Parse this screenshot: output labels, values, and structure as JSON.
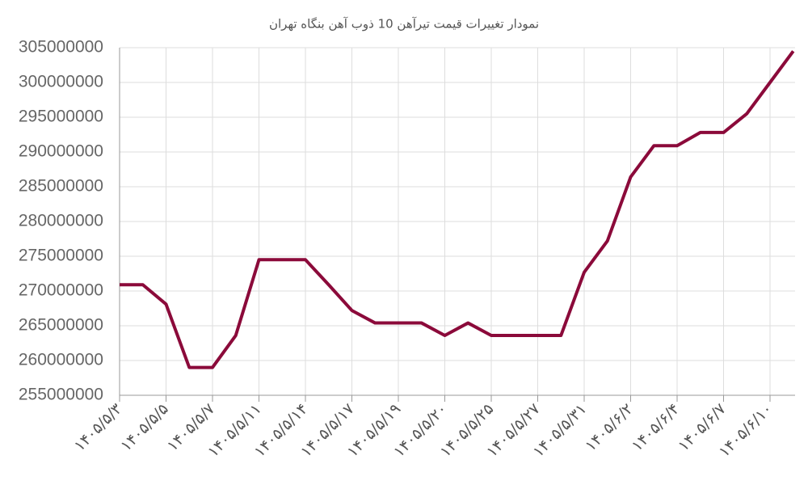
{
  "chart_data": {
    "type": "line",
    "title": "نمودار تغییرات قیمت تیرآهن 10 ذوب آهن بنگاه تهران",
    "categories": [
      "۱۴۰۵/۵/۳",
      null,
      "۱۴۰۵/۵/۵",
      null,
      "۱۴۰۵/۵/۷",
      null,
      "۱۴۰۵/۵/۱۱",
      null,
      "۱۴۰۵/۵/۱۴",
      null,
      "۱۴۰۵/۵/۱۷",
      null,
      "۱۴۰۵/۵/۱۹",
      null,
      "۱۴۰۵/۵/۲۰",
      null,
      "۱۴۰۵/۵/۲۵",
      null,
      "۱۴۰۵/۵/۲۷",
      null,
      "۱۴۰۵/۵/۳۱",
      null,
      "۱۴۰۵/۶/۲",
      null,
      "۱۴۰۵/۶/۴",
      null,
      "۱۴۰۵/۶/۷",
      null,
      "۱۴۰۵/۶/۱۰",
      null
    ],
    "values": [
      270900000,
      270900000,
      268100000,
      259000000,
      259000000,
      263600000,
      274500000,
      274500000,
      274500000,
      270900000,
      267200000,
      265400000,
      265400000,
      265400000,
      263600000,
      265400000,
      263600000,
      263600000,
      263600000,
      263600000,
      272700000,
      277200000,
      286400000,
      290900000,
      290900000,
      292800000,
      292800000,
      295500000,
      300000000,
      304500000
    ],
    "color": "#8b0a3a",
    "ylim": [
      255000000,
      305000000
    ],
    "yticks": [
      255000000,
      260000000,
      265000000,
      270000000,
      275000000,
      280000000,
      285000000,
      290000000,
      295000000,
      300000000,
      305000000
    ],
    "grid": true
  }
}
